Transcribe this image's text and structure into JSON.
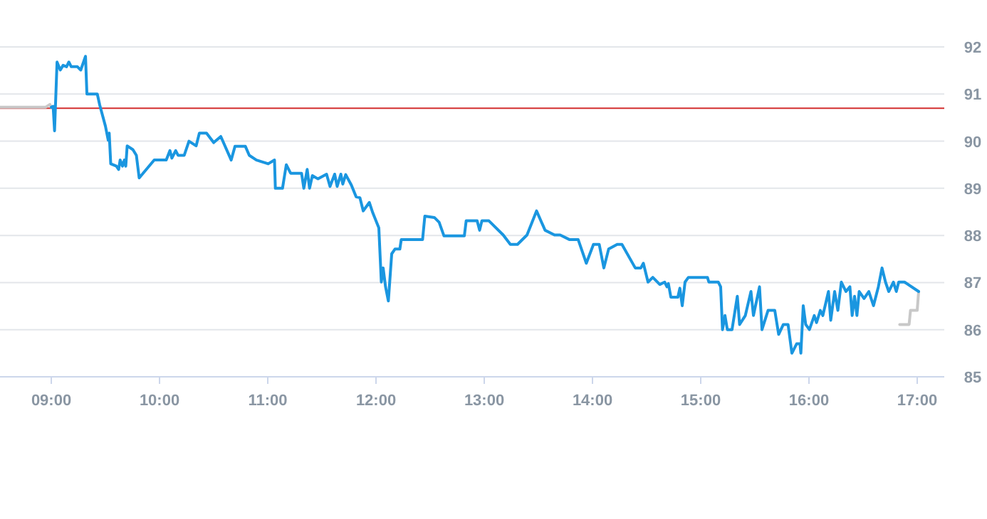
{
  "chart_data": {
    "type": "line",
    "xlim": [
      8.526,
      17.25
    ],
    "ylim": [
      85,
      92
    ],
    "xticks": [
      {
        "value": 9,
        "label": "09:00"
      },
      {
        "value": 10,
        "label": "10:00"
      },
      {
        "value": 11,
        "label": "11:00"
      },
      {
        "value": 12,
        "label": "12:00"
      },
      {
        "value": 13,
        "label": "13:00"
      },
      {
        "value": 14,
        "label": "14:00"
      },
      {
        "value": 15,
        "label": "15:00"
      },
      {
        "value": 16,
        "label": "16:00"
      },
      {
        "value": 17,
        "label": "17:00"
      }
    ],
    "yticks": [
      85,
      86,
      87,
      88,
      89,
      90,
      91,
      92
    ],
    "grid": "y",
    "marker": "none",
    "line_style": "solid",
    "ref_lines": [
      {
        "axis": "y",
        "value": 90.7,
        "color": "#d32f2f"
      }
    ],
    "series": [
      {
        "color": "#c8c8c8",
        "x": [
          8.526,
          8.947,
          8.987,
          9.0,
          12.9,
          16.838,
          16.925,
          16.938,
          17.0,
          17.013
        ],
        "values": [
          90.72,
          90.72,
          90.78,
          90.72,
          null,
          86.11,
          86.11,
          86.41,
          86.41,
          86.81
        ]
      },
      {
        "color": "#1a96e0",
        "x": [
          9.0,
          9.017,
          9.03,
          9.053,
          9.083,
          9.109,
          9.141,
          9.162,
          9.184,
          9.241,
          9.272,
          9.316,
          9.329,
          9.425,
          9.447,
          9.5,
          9.526,
          9.535,
          9.549,
          9.601,
          9.622,
          9.636,
          9.658,
          9.675,
          9.688,
          9.701,
          9.754,
          9.786,
          9.812,
          9.951,
          10.062,
          10.096,
          10.114,
          10.149,
          10.171,
          10.228,
          10.272,
          10.338,
          10.368,
          10.434,
          10.5,
          10.566,
          10.662,
          10.697,
          10.793,
          10.829,
          10.895,
          11.004,
          11.062,
          11.07,
          11.136,
          11.171,
          11.211,
          11.312,
          11.333,
          11.364,
          11.386,
          11.412,
          11.464,
          11.543,
          11.575,
          11.618,
          11.641,
          11.675,
          11.693,
          11.72,
          11.772,
          11.816,
          11.851,
          11.882,
          11.938,
          11.97,
          12.026,
          12.049,
          12.066,
          12.088,
          12.114,
          12.145,
          12.175,
          12.22,
          12.233,
          12.43,
          12.451,
          12.539,
          12.583,
          12.628,
          12.816,
          12.833,
          12.934,
          12.957,
          12.978,
          13.043,
          13.175,
          13.241,
          13.307,
          13.395,
          13.483,
          13.562,
          13.649,
          13.701,
          13.789,
          13.868,
          13.943,
          14.009,
          14.062,
          14.105,
          14.149,
          14.228,
          14.272,
          14.395,
          14.447,
          14.47,
          14.513,
          14.557,
          14.622,
          14.667,
          14.688,
          14.701,
          14.724,
          14.789,
          14.807,
          14.829,
          14.855,
          14.886,
          15.062,
          15.075,
          15.162,
          15.184,
          15.201,
          15.224,
          15.246,
          15.289,
          15.338,
          15.359,
          15.412,
          15.464,
          15.487,
          15.543,
          15.566,
          15.622,
          15.684,
          15.72,
          15.763,
          15.807,
          15.842,
          15.886,
          15.917,
          15.925,
          15.947,
          15.97,
          16.004,
          16.049,
          16.07,
          16.105,
          16.128,
          16.18,
          16.201,
          16.237,
          16.267,
          16.299,
          16.342,
          16.378,
          16.399,
          16.421,
          16.443,
          16.464,
          16.509,
          16.553,
          16.596,
          16.641,
          16.675,
          16.707,
          16.737,
          16.78,
          16.807,
          16.829,
          16.882,
          17.013
        ],
        "values": [
          90.72,
          90.74,
          90.22,
          91.68,
          91.51,
          91.61,
          91.58,
          91.68,
          91.58,
          91.58,
          91.51,
          91.8,
          91.0,
          91.0,
          90.77,
          90.32,
          90.02,
          90.17,
          89.52,
          89.47,
          89.4,
          89.6,
          89.47,
          89.6,
          89.47,
          89.9,
          89.82,
          89.7,
          89.22,
          89.6,
          89.6,
          89.8,
          89.64,
          89.8,
          89.7,
          89.7,
          90.0,
          89.9,
          90.17,
          90.17,
          89.97,
          90.1,
          89.6,
          89.89,
          89.89,
          89.7,
          89.6,
          89.52,
          89.6,
          89.0,
          89.0,
          89.5,
          89.32,
          89.32,
          89.0,
          89.4,
          89.0,
          89.27,
          89.2,
          89.3,
          89.04,
          89.3,
          89.04,
          89.3,
          89.09,
          89.29,
          89.07,
          88.82,
          88.8,
          88.52,
          88.7,
          88.48,
          88.16,
          87.01,
          87.31,
          86.91,
          86.61,
          87.61,
          87.71,
          87.71,
          87.91,
          87.91,
          88.41,
          88.38,
          88.28,
          87.99,
          87.99,
          88.31,
          88.31,
          88.11,
          88.31,
          88.31,
          88.01,
          87.81,
          87.81,
          88.01,
          88.52,
          88.11,
          88.01,
          88.01,
          87.91,
          87.91,
          87.41,
          87.81,
          87.81,
          87.31,
          87.71,
          87.81,
          87.81,
          87.31,
          87.31,
          87.41,
          87.01,
          87.11,
          86.96,
          87.01,
          86.91,
          86.98,
          86.69,
          86.69,
          86.88,
          86.51,
          87.01,
          87.11,
          87.11,
          87.01,
          87.01,
          86.91,
          86.0,
          86.3,
          86.0,
          86.0,
          86.71,
          86.11,
          86.3,
          86.81,
          86.3,
          86.91,
          86.0,
          86.41,
          86.41,
          85.9,
          86.11,
          86.11,
          85.5,
          85.7,
          85.7,
          85.5,
          86.51,
          86.11,
          86.0,
          86.3,
          86.15,
          86.41,
          86.3,
          86.81,
          86.2,
          86.81,
          86.41,
          87.01,
          86.81,
          86.91,
          86.3,
          86.71,
          86.3,
          86.81,
          86.66,
          86.81,
          86.51,
          86.91,
          87.31,
          87.01,
          86.81,
          87.01,
          86.81,
          87.01,
          87.01,
          86.81
        ]
      }
    ]
  }
}
